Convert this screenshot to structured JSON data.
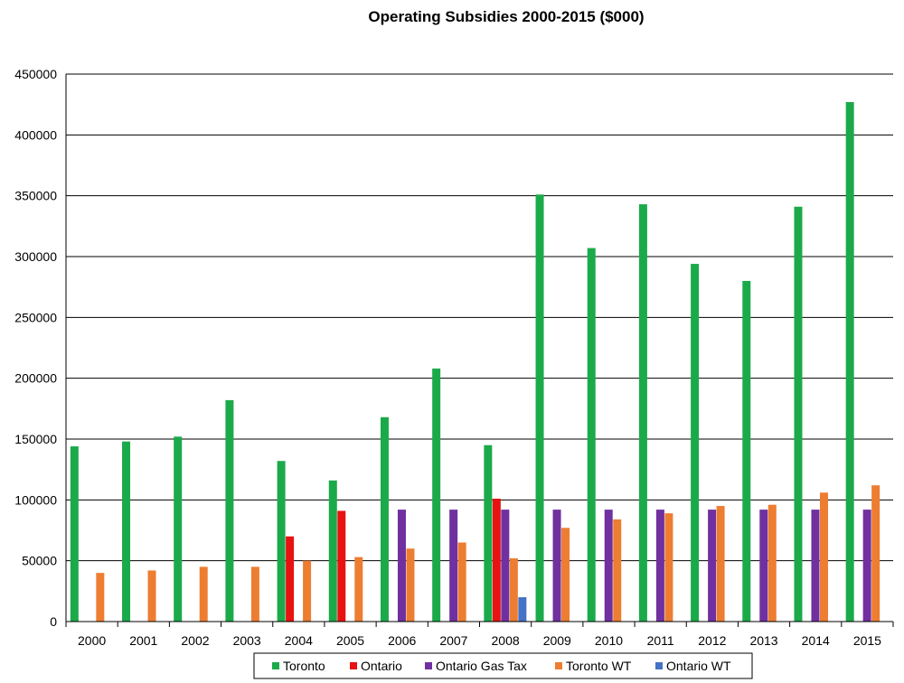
{
  "chart_data": {
    "type": "bar",
    "title": "Operating Subsidies 2000-2015 ($000)",
    "xlabel": "",
    "ylabel": "",
    "ylim": [
      0,
      450000
    ],
    "yticks": [
      0,
      50000,
      100000,
      150000,
      200000,
      250000,
      300000,
      350000,
      400000,
      450000
    ],
    "grid": true,
    "legend_position": "bottom",
    "categories": [
      "2000",
      "2001",
      "2002",
      "2003",
      "2004",
      "2005",
      "2006",
      "2007",
      "2008",
      "2009",
      "2010",
      "2011",
      "2012",
      "2013",
      "2014",
      "2015"
    ],
    "series": [
      {
        "name": "Toronto",
        "color": "#1BAA4A",
        "values": [
          144000,
          148000,
          152000,
          182000,
          132000,
          116000,
          168000,
          208000,
          145000,
          351000,
          307000,
          343000,
          294000,
          280000,
          341000,
          427000
        ]
      },
      {
        "name": "Ontario",
        "color": "#E81212",
        "values": [
          null,
          null,
          null,
          null,
          70000,
          91000,
          null,
          null,
          101000,
          null,
          null,
          null,
          null,
          null,
          null,
          null
        ]
      },
      {
        "name": "Ontario Gas Tax",
        "color": "#7030A0",
        "values": [
          null,
          null,
          null,
          null,
          null,
          null,
          92000,
          92000,
          92000,
          92000,
          92000,
          92000,
          92000,
          92000,
          92000,
          92000
        ]
      },
      {
        "name": "Toronto WT",
        "color": "#ED7D31",
        "values": [
          40000,
          42000,
          45000,
          45000,
          50000,
          53000,
          60000,
          65000,
          52000,
          77000,
          84000,
          89000,
          95000,
          96000,
          106000,
          112000
        ]
      },
      {
        "name": "Ontario WT",
        "color": "#4472C4",
        "values": [
          null,
          null,
          null,
          null,
          null,
          null,
          null,
          null,
          20000,
          null,
          null,
          null,
          null,
          null,
          null,
          null
        ]
      }
    ]
  }
}
